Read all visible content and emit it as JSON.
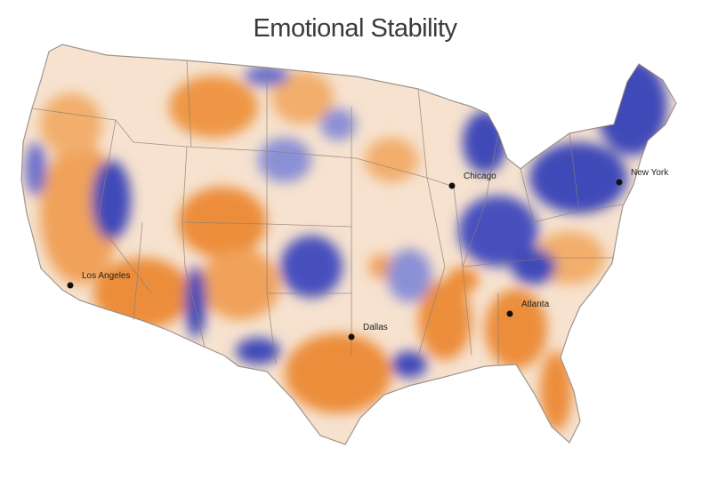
{
  "title": "Emotional Stability",
  "colors": {
    "high": "#3f49b8",
    "mid_high": "#8b90d6",
    "neutral": "#f6e2cf",
    "mid_low": "#f5c08c",
    "low": "#ec8d3a",
    "borders": "#8a7f75"
  },
  "cities": [
    {
      "name": "Los Angeles"
    },
    {
      "name": "Chicago"
    },
    {
      "name": "New York"
    },
    {
      "name": "Dallas"
    },
    {
      "name": "Atlanta"
    }
  ]
}
